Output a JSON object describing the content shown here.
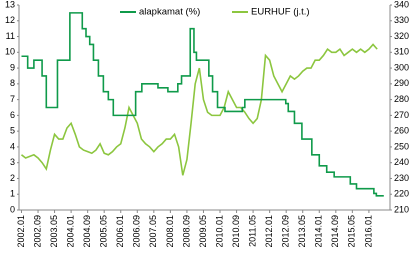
{
  "chart_data": {
    "type": "line",
    "xlim": [
      2001.9,
      2016.85
    ],
    "xticks": [
      {
        "value": 2002.0,
        "label": "2002.01"
      },
      {
        "value": 2002.667,
        "label": "2002.09"
      },
      {
        "value": 2003.333,
        "label": "2003.05"
      },
      {
        "value": 2004.0,
        "label": "2004.01"
      },
      {
        "value": 2004.667,
        "label": "2004.09"
      },
      {
        "value": 2005.333,
        "label": "2005.05"
      },
      {
        "value": 2006.0,
        "label": "2006.01"
      },
      {
        "value": 2006.667,
        "label": "2006.09"
      },
      {
        "value": 2007.333,
        "label": "2007.05"
      },
      {
        "value": 2008.0,
        "label": "2008.01"
      },
      {
        "value": 2008.667,
        "label": "2008.09"
      },
      {
        "value": 2009.333,
        "label": "2009.05"
      },
      {
        "value": 2010.0,
        "label": "2010.01"
      },
      {
        "value": 2010.667,
        "label": "2010.09"
      },
      {
        "value": 2011.333,
        "label": "2011.05"
      },
      {
        "value": 2012.0,
        "label": "2012.01"
      },
      {
        "value": 2012.667,
        "label": "2012.09"
      },
      {
        "value": 2013.333,
        "label": "2013.05"
      },
      {
        "value": 2014.0,
        "label": "2014.01"
      },
      {
        "value": 2014.667,
        "label": "2014.09"
      },
      {
        "value": 2015.333,
        "label": "2015.05"
      },
      {
        "value": 2016.0,
        "label": "2016.01"
      }
    ],
    "ylim": [
      0,
      13
    ],
    "yticks": [
      0,
      1,
      2,
      3,
      4,
      5,
      6,
      7,
      8,
      9,
      10,
      11,
      12,
      13
    ],
    "y2lim": [
      210,
      340
    ],
    "y2ticks": [
      210,
      220,
      230,
      240,
      250,
      260,
      270,
      280,
      290,
      300,
      310,
      320,
      330,
      340
    ],
    "series": [
      {
        "name": "alapkamat (%)",
        "color": "#0f9a4a",
        "step": "post",
        "x": [
          2002.0,
          2002.25,
          2002.5,
          2002.83,
          2003.0,
          2003.45,
          2003.95,
          2004.45,
          2004.6,
          2004.75,
          2004.9,
          2005.1,
          2005.3,
          2005.5,
          2005.7,
          2006.6,
          2006.85,
          2007.5,
          2007.9,
          2008.3,
          2008.45,
          2008.8,
          2008.95,
          2009.05,
          2009.55,
          2009.7,
          2009.9,
          2010.2,
          2010.9,
          2011.0,
          2012.65,
          2012.75,
          2013.0,
          2013.3,
          2013.7,
          2014.0,
          2014.3,
          2014.6,
          2015.25,
          2015.5,
          2016.2,
          2016.3,
          2016.6
        ],
        "values": [
          9.75,
          9.0,
          9.5,
          8.5,
          6.5,
          9.5,
          12.5,
          11.5,
          11,
          10.5,
          9.5,
          8.5,
          7.5,
          7,
          6,
          7.5,
          8,
          7.75,
          7.5,
          8,
          8.5,
          11.5,
          10,
          9.5,
          8.5,
          7.5,
          6.5,
          6.25,
          6.5,
          7,
          6.75,
          6.25,
          5.5,
          4.5,
          3.5,
          2.8,
          2.4,
          2.1,
          1.65,
          1.35,
          1.05,
          0.9,
          0.9
        ]
      },
      {
        "name": "EURHUF (j.t.)",
        "color": "#8cc63f",
        "axis": "y2",
        "x": [
          2002.0,
          2002.167,
          2002.333,
          2002.5,
          2002.667,
          2002.833,
          2003.0,
          2003.167,
          2003.333,
          2003.5,
          2003.667,
          2003.833,
          2004.0,
          2004.167,
          2004.333,
          2004.5,
          2004.667,
          2004.833,
          2005.0,
          2005.167,
          2005.333,
          2005.5,
          2005.667,
          2005.833,
          2006.0,
          2006.167,
          2006.333,
          2006.5,
          2006.667,
          2006.833,
          2007.0,
          2007.167,
          2007.333,
          2007.5,
          2007.667,
          2007.833,
          2008.0,
          2008.167,
          2008.333,
          2008.5,
          2008.667,
          2008.833,
          2009.0,
          2009.167,
          2009.333,
          2009.5,
          2009.667,
          2009.833,
          2010.0,
          2010.167,
          2010.333,
          2010.5,
          2010.667,
          2010.833,
          2011.0,
          2011.167,
          2011.333,
          2011.5,
          2011.667,
          2011.833,
          2012.0,
          2012.167,
          2012.333,
          2012.5,
          2012.667,
          2012.833,
          2013.0,
          2013.167,
          2013.333,
          2013.5,
          2013.667,
          2013.833,
          2014.0,
          2014.167,
          2014.333,
          2014.5,
          2014.667,
          2014.833,
          2015.0,
          2015.167,
          2015.333,
          2015.5,
          2015.667,
          2015.833,
          2016.0,
          2016.167,
          2016.333
        ],
        "values": [
          245,
          243,
          244,
          245,
          243,
          240,
          236,
          248,
          258,
          255,
          255,
          262,
          265,
          258,
          250,
          248,
          247,
          246,
          248,
          252,
          246,
          245,
          247,
          250,
          252,
          262,
          275,
          270,
          265,
          255,
          252,
          250,
          247,
          250,
          252,
          255,
          255,
          258,
          250,
          232,
          242,
          265,
          290,
          300,
          280,
          272,
          270,
          270,
          270,
          275,
          285,
          280,
          275,
          275,
          272,
          268,
          265,
          268,
          280,
          308,
          305,
          295,
          290,
          285,
          290,
          295,
          293,
          295,
          298,
          300,
          300,
          305,
          305,
          308,
          312,
          310,
          310,
          312,
          308,
          310,
          312,
          310,
          312,
          310,
          312,
          315,
          312
        ]
      }
    ]
  }
}
